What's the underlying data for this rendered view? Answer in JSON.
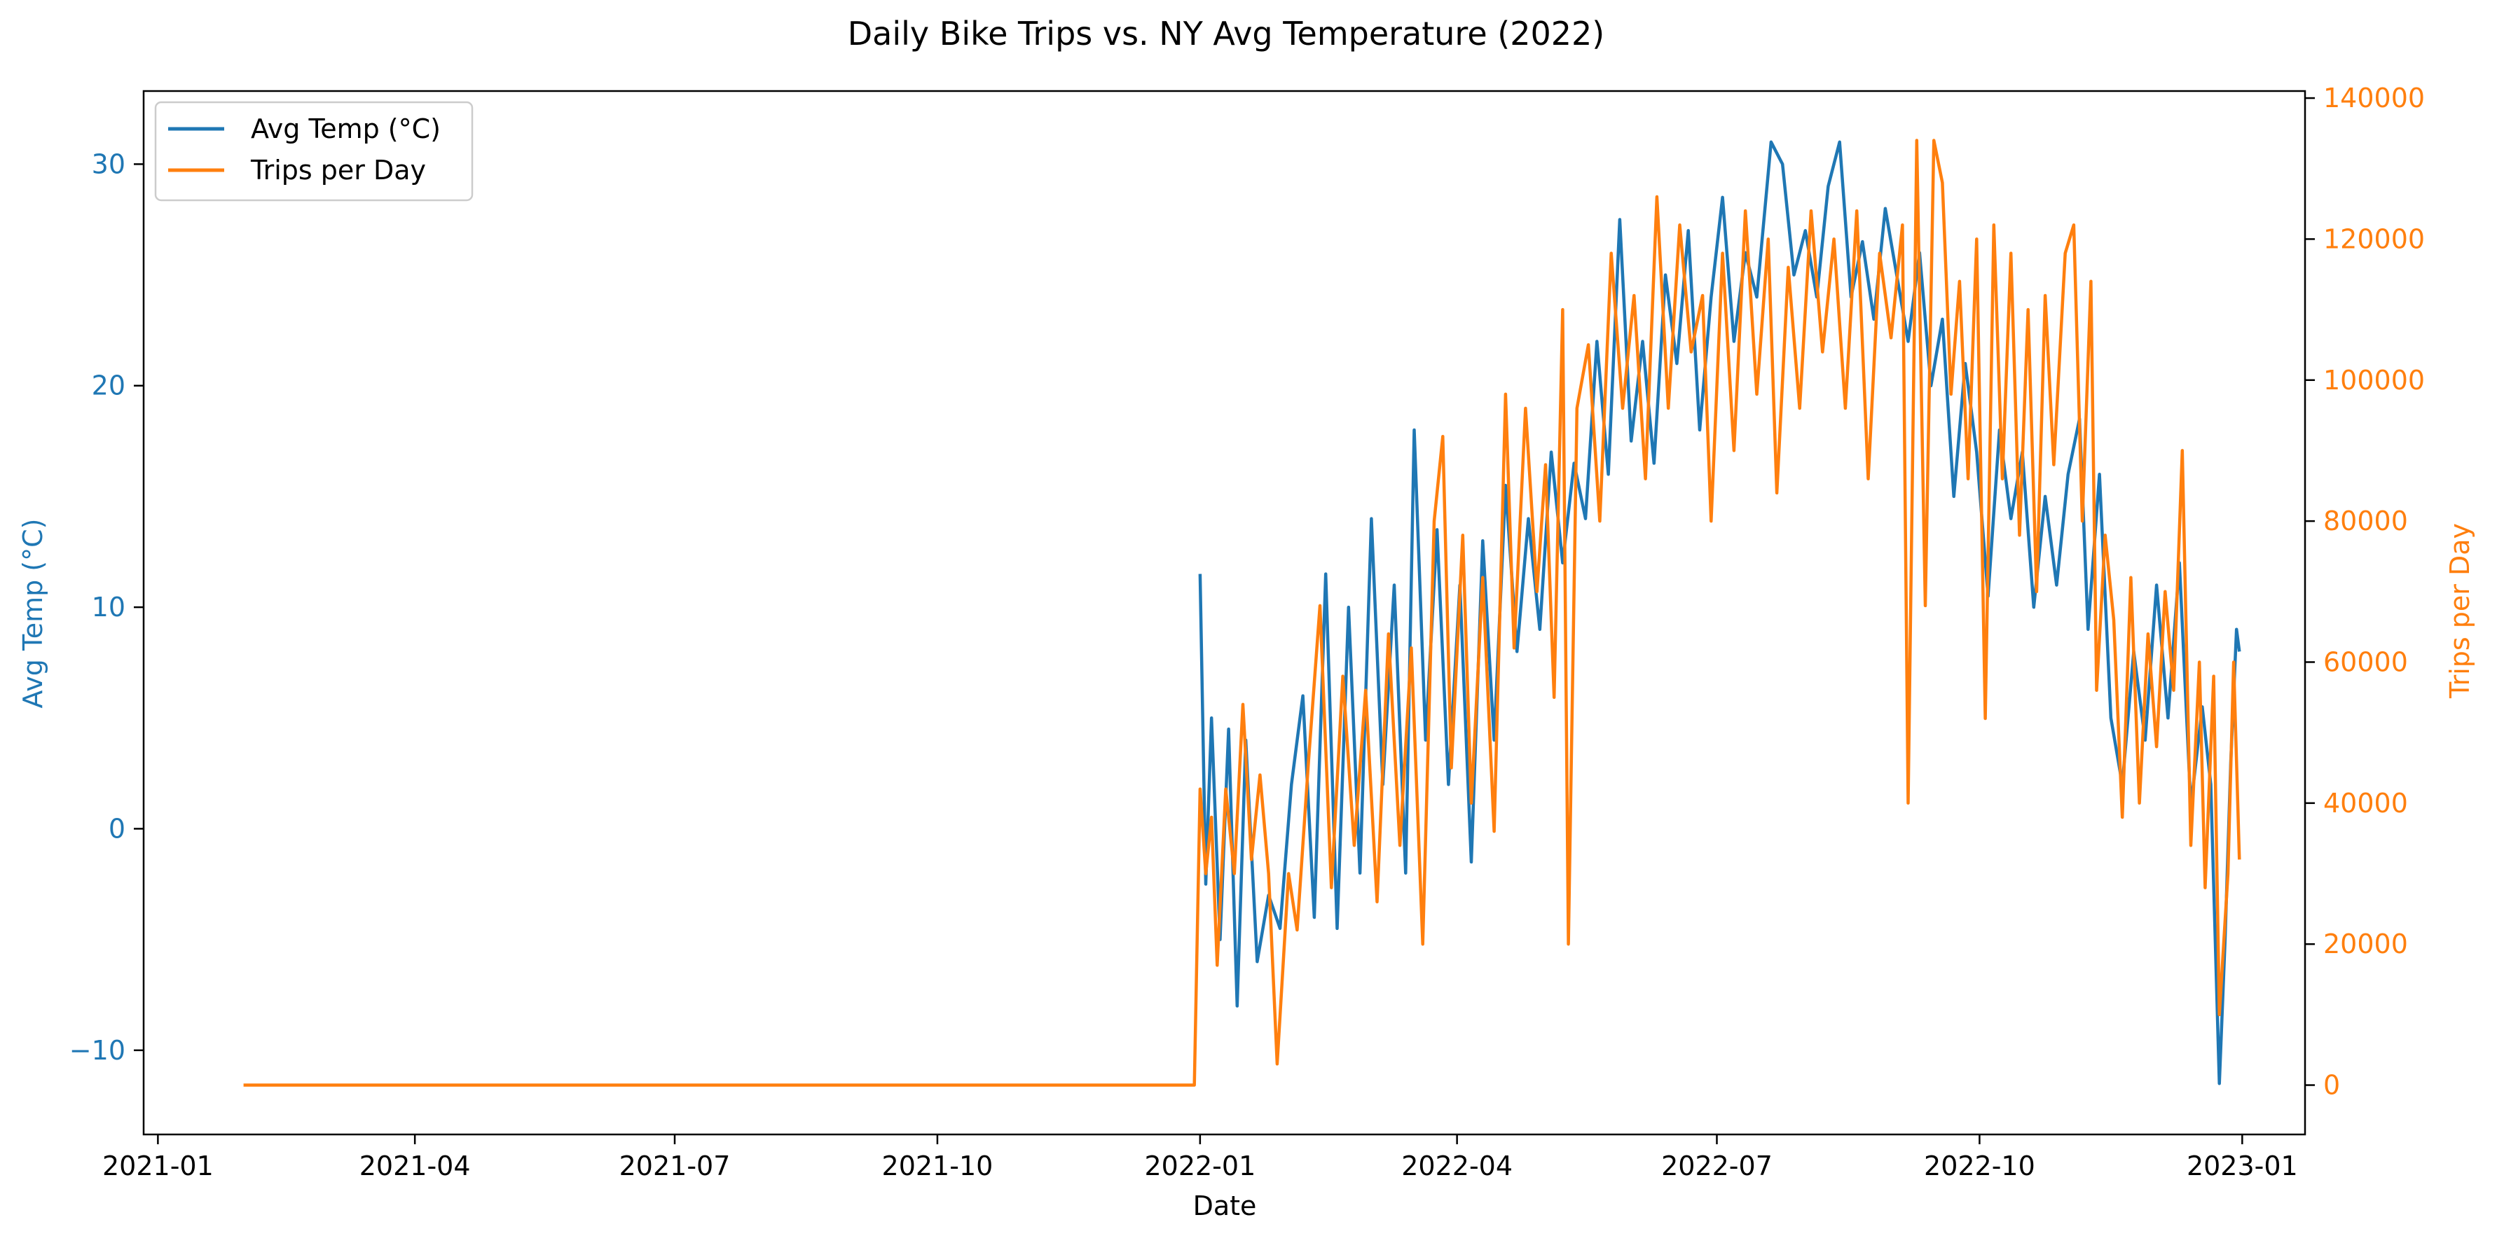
{
  "chart_data": {
    "type": "line",
    "title": "Daily Bike Trips vs. NY Avg Temperature (2022)",
    "xlabel": "Date",
    "ylabel_left": "Avg Temp (°C)",
    "ylabel_right": "Trips per Day",
    "x_ticks": [
      "2021-01",
      "2021-04",
      "2021-07",
      "2021-10",
      "2022-01",
      "2022-04",
      "2022-07",
      "2022-10",
      "2023-01"
    ],
    "y_left_ticks": [
      "−10",
      "0",
      "10",
      "20",
      "30"
    ],
    "y_right_ticks": [
      "0",
      "20000",
      "40000",
      "60000",
      "80000",
      "100000",
      "120000",
      "140000"
    ],
    "x_range": [
      "2020-12-27",
      "2023-01-23"
    ],
    "y_left_range": [
      -13.8,
      33.3
    ],
    "y_right_range": [
      -7000,
      141000
    ],
    "legend_position": "top-left",
    "grid": false,
    "series": [
      {
        "name": "Avg Temp (°C)",
        "axis": "left",
        "color": "#1f77b4",
        "points": [
          [
            "2022-01-01",
            11.5
          ],
          [
            "2022-01-03",
            -2.5
          ],
          [
            "2022-01-05",
            5.0
          ],
          [
            "2022-01-08",
            -5.0
          ],
          [
            "2022-01-11",
            4.5
          ],
          [
            "2022-01-14",
            -8.0
          ],
          [
            "2022-01-17",
            4.0
          ],
          [
            "2022-01-21",
            -6.0
          ],
          [
            "2022-01-25",
            -3.0
          ],
          [
            "2022-01-29",
            -4.5
          ],
          [
            "2022-02-02",
            2.0
          ],
          [
            "2022-02-06",
            6.0
          ],
          [
            "2022-02-10",
            -4.0
          ],
          [
            "2022-02-14",
            11.5
          ],
          [
            "2022-02-18",
            -4.5
          ],
          [
            "2022-02-22",
            10.0
          ],
          [
            "2022-02-26",
            -2.0
          ],
          [
            "2022-03-02",
            14.0
          ],
          [
            "2022-03-06",
            2.0
          ],
          [
            "2022-03-10",
            11.0
          ],
          [
            "2022-03-14",
            -2.0
          ],
          [
            "2022-03-17",
            18.0
          ],
          [
            "2022-03-21",
            4.0
          ],
          [
            "2022-03-25",
            13.5
          ],
          [
            "2022-03-29",
            2.0
          ],
          [
            "2022-04-02",
            11.0
          ],
          [
            "2022-04-06",
            -1.5
          ],
          [
            "2022-04-10",
            13.0
          ],
          [
            "2022-04-14",
            4.0
          ],
          [
            "2022-04-18",
            15.5
          ],
          [
            "2022-04-22",
            8.0
          ],
          [
            "2022-04-26",
            14.0
          ],
          [
            "2022-04-30",
            9.0
          ],
          [
            "2022-05-04",
            17.0
          ],
          [
            "2022-05-08",
            12.0
          ],
          [
            "2022-05-12",
            16.5
          ],
          [
            "2022-05-16",
            14.0
          ],
          [
            "2022-05-20",
            22.0
          ],
          [
            "2022-05-24",
            16.0
          ],
          [
            "2022-05-28",
            27.5
          ],
          [
            "2022-06-01",
            17.5
          ],
          [
            "2022-06-05",
            22.0
          ],
          [
            "2022-06-09",
            16.5
          ],
          [
            "2022-06-13",
            25.0
          ],
          [
            "2022-06-17",
            21.0
          ],
          [
            "2022-06-21",
            27.0
          ],
          [
            "2022-06-25",
            18.0
          ],
          [
            "2022-06-29",
            24.0
          ],
          [
            "2022-07-03",
            28.5
          ],
          [
            "2022-07-07",
            22.0
          ],
          [
            "2022-07-11",
            26.0
          ],
          [
            "2022-07-15",
            24.0
          ],
          [
            "2022-07-20",
            31.0
          ],
          [
            "2022-07-24",
            30.0
          ],
          [
            "2022-07-28",
            25.0
          ],
          [
            "2022-08-01",
            27.0
          ],
          [
            "2022-08-05",
            24.0
          ],
          [
            "2022-08-09",
            29.0
          ],
          [
            "2022-08-13",
            31.0
          ],
          [
            "2022-08-17",
            24.0
          ],
          [
            "2022-08-21",
            26.5
          ],
          [
            "2022-08-25",
            23.0
          ],
          [
            "2022-08-29",
            28.0
          ],
          [
            "2022-09-02",
            25.0
          ],
          [
            "2022-09-06",
            22.0
          ],
          [
            "2022-09-10",
            26.0
          ],
          [
            "2022-09-14",
            20.0
          ],
          [
            "2022-09-18",
            23.0
          ],
          [
            "2022-09-22",
            15.0
          ],
          [
            "2022-09-26",
            21.0
          ],
          [
            "2022-09-30",
            17.0
          ],
          [
            "2022-10-04",
            10.5
          ],
          [
            "2022-10-08",
            18.0
          ],
          [
            "2022-10-12",
            14.0
          ],
          [
            "2022-10-16",
            17.0
          ],
          [
            "2022-10-20",
            10.0
          ],
          [
            "2022-10-24",
            15.0
          ],
          [
            "2022-10-28",
            11.0
          ],
          [
            "2022-11-01",
            16.0
          ],
          [
            "2022-11-05",
            18.5
          ],
          [
            "2022-11-08",
            9.0
          ],
          [
            "2022-11-12",
            16.0
          ],
          [
            "2022-11-16",
            5.0
          ],
          [
            "2022-11-20",
            2.0
          ],
          [
            "2022-11-24",
            8.0
          ],
          [
            "2022-11-28",
            4.0
          ],
          [
            "2022-12-02",
            11.0
          ],
          [
            "2022-12-06",
            5.0
          ],
          [
            "2022-12-10",
            12.0
          ],
          [
            "2022-12-14",
            1.0
          ],
          [
            "2022-12-18",
            5.5
          ],
          [
            "2022-12-21",
            2.0
          ],
          [
            "2022-12-24",
            -11.5
          ],
          [
            "2022-12-26",
            -5.0
          ],
          [
            "2022-12-28",
            3.0
          ],
          [
            "2022-12-30",
            9.0
          ],
          [
            "2022-12-31",
            8.0
          ]
        ]
      },
      {
        "name": "Trips per Day",
        "axis": "right",
        "color": "#ff7f0e",
        "points": [
          [
            "2021-01-31",
            0
          ],
          [
            "2021-12-30",
            0
          ],
          [
            "2022-01-01",
            42000
          ],
          [
            "2022-01-03",
            30000
          ],
          [
            "2022-01-05",
            38000
          ],
          [
            "2022-01-07",
            17000
          ],
          [
            "2022-01-10",
            42000
          ],
          [
            "2022-01-13",
            30000
          ],
          [
            "2022-01-16",
            54000
          ],
          [
            "2022-01-19",
            32000
          ],
          [
            "2022-01-22",
            44000
          ],
          [
            "2022-01-25",
            30000
          ],
          [
            "2022-01-28",
            3000
          ],
          [
            "2022-02-01",
            30000
          ],
          [
            "2022-02-04",
            22000
          ],
          [
            "2022-02-08",
            46000
          ],
          [
            "2022-02-12",
            68000
          ],
          [
            "2022-02-16",
            28000
          ],
          [
            "2022-02-20",
            58000
          ],
          [
            "2022-02-24",
            34000
          ],
          [
            "2022-02-28",
            56000
          ],
          [
            "2022-03-04",
            26000
          ],
          [
            "2022-03-08",
            64000
          ],
          [
            "2022-03-12",
            34000
          ],
          [
            "2022-03-16",
            62000
          ],
          [
            "2022-03-20",
            20000
          ],
          [
            "2022-03-24",
            80000
          ],
          [
            "2022-03-27",
            92000
          ],
          [
            "2022-03-30",
            45000
          ],
          [
            "2022-04-03",
            78000
          ],
          [
            "2022-04-06",
            40000
          ],
          [
            "2022-04-10",
            72000
          ],
          [
            "2022-04-14",
            36000
          ],
          [
            "2022-04-18",
            98000
          ],
          [
            "2022-04-21",
            62000
          ],
          [
            "2022-04-25",
            96000
          ],
          [
            "2022-04-29",
            70000
          ],
          [
            "2022-05-02",
            88000
          ],
          [
            "2022-05-05",
            55000
          ],
          [
            "2022-05-08",
            110000
          ],
          [
            "2022-05-10",
            20000
          ],
          [
            "2022-05-13",
            96000
          ],
          [
            "2022-05-17",
            105000
          ],
          [
            "2022-05-21",
            80000
          ],
          [
            "2022-05-25",
            118000
          ],
          [
            "2022-05-29",
            96000
          ],
          [
            "2022-06-02",
            112000
          ],
          [
            "2022-06-06",
            86000
          ],
          [
            "2022-06-10",
            126000
          ],
          [
            "2022-06-14",
            96000
          ],
          [
            "2022-06-18",
            122000
          ],
          [
            "2022-06-22",
            104000
          ],
          [
            "2022-06-26",
            112000
          ],
          [
            "2022-06-29",
            80000
          ],
          [
            "2022-07-03",
            118000
          ],
          [
            "2022-07-07",
            90000
          ],
          [
            "2022-07-11",
            124000
          ],
          [
            "2022-07-15",
            98000
          ],
          [
            "2022-07-19",
            120000
          ],
          [
            "2022-07-22",
            84000
          ],
          [
            "2022-07-26",
            116000
          ],
          [
            "2022-07-30",
            96000
          ],
          [
            "2022-08-03",
            124000
          ],
          [
            "2022-08-07",
            104000
          ],
          [
            "2022-08-11",
            120000
          ],
          [
            "2022-08-15",
            96000
          ],
          [
            "2022-08-19",
            124000
          ],
          [
            "2022-08-23",
            86000
          ],
          [
            "2022-08-27",
            118000
          ],
          [
            "2022-08-31",
            106000
          ],
          [
            "2022-09-04",
            122000
          ],
          [
            "2022-09-06",
            40000
          ],
          [
            "2022-09-09",
            134000
          ],
          [
            "2022-09-12",
            68000
          ],
          [
            "2022-09-15",
            134000
          ],
          [
            "2022-09-18",
            128000
          ],
          [
            "2022-09-21",
            98000
          ],
          [
            "2022-09-24",
            114000
          ],
          [
            "2022-09-27",
            86000
          ],
          [
            "2022-09-30",
            120000
          ],
          [
            "2022-10-03",
            52000
          ],
          [
            "2022-10-06",
            122000
          ],
          [
            "2022-10-09",
            86000
          ],
          [
            "2022-10-12",
            118000
          ],
          [
            "2022-10-15",
            78000
          ],
          [
            "2022-10-18",
            110000
          ],
          [
            "2022-10-21",
            70000
          ],
          [
            "2022-10-24",
            112000
          ],
          [
            "2022-10-27",
            88000
          ],
          [
            "2022-10-31",
            118000
          ],
          [
            "2022-11-03",
            122000
          ],
          [
            "2022-11-06",
            80000
          ],
          [
            "2022-11-09",
            114000
          ],
          [
            "2022-11-11",
            56000
          ],
          [
            "2022-11-14",
            78000
          ],
          [
            "2022-11-17",
            66000
          ],
          [
            "2022-11-20",
            38000
          ],
          [
            "2022-11-23",
            72000
          ],
          [
            "2022-11-26",
            40000
          ],
          [
            "2022-11-29",
            64000
          ],
          [
            "2022-12-02",
            48000
          ],
          [
            "2022-12-05",
            70000
          ],
          [
            "2022-12-08",
            56000
          ],
          [
            "2022-12-11",
            90000
          ],
          [
            "2022-12-14",
            34000
          ],
          [
            "2022-12-17",
            60000
          ],
          [
            "2022-12-19",
            28000
          ],
          [
            "2022-12-22",
            58000
          ],
          [
            "2022-12-24",
            10000
          ],
          [
            "2022-12-27",
            30000
          ],
          [
            "2022-12-29",
            60000
          ],
          [
            "2022-12-31",
            32000
          ]
        ]
      }
    ]
  }
}
